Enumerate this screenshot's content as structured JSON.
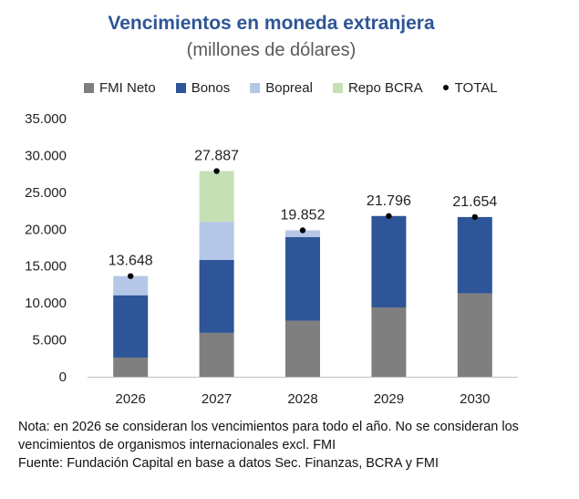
{
  "chart_data": {
    "type": "bar",
    "stacked": true,
    "title": "Vencimientos en moneda extranjera",
    "subtitle": "(millones de dólares)",
    "categories": [
      "2026",
      "2027",
      "2028",
      "2029",
      "2030"
    ],
    "series": [
      {
        "name": "FMI Neto",
        "color": "#7f7f7f",
        "values": [
          2600,
          5950,
          7600,
          9400,
          11300
        ]
      },
      {
        "name": "Bonos",
        "color": "#2e5597",
        "values": [
          8450,
          9900,
          11350,
          12396,
          10354
        ]
      },
      {
        "name": "Bopreal",
        "color": "#b4c7e7",
        "values": [
          2598,
          5150,
          902,
          0,
          0
        ]
      },
      {
        "name": "Repo BCRA",
        "color": "#c5e0b4",
        "values": [
          0,
          6887,
          0,
          0,
          0
        ]
      }
    ],
    "total": {
      "name": "TOTAL",
      "values": [
        13648,
        27887,
        19852,
        21796,
        21654
      ],
      "labels": [
        "13.648",
        "27.887",
        "19.852",
        "21.796",
        "21.654"
      ]
    },
    "ylim": [
      0,
      35000
    ],
    "yticks": [
      0,
      5000,
      10000,
      15000,
      20000,
      25000,
      30000,
      35000
    ],
    "ytick_labels": [
      "0",
      "5.000",
      "10.000",
      "15.000",
      "20.000",
      "25.000",
      "30.000",
      "35.000"
    ],
    "grid": false,
    "legend_position": "top"
  },
  "notes": {
    "line1": "Nota: en 2026 se consideran los vencimientos para todo el año. No se consideran los",
    "line2": "vencimientos de organismos internacionales excl. FMI",
    "line3": "Fuente: Fundación Capital en base a datos Sec. Finanzas, BCRA y FMI"
  }
}
